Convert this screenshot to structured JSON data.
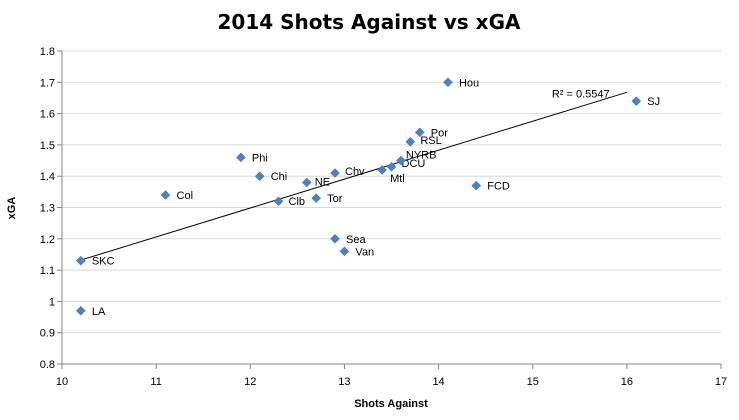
{
  "chart_data": {
    "type": "scatter",
    "title": "2014 Shots Against vs xGA",
    "xlabel": "Shots Against",
    "ylabel": "xGA",
    "xlim": [
      10,
      17
    ],
    "ylim": [
      0.8,
      1.8
    ],
    "xticks": [
      10,
      11,
      12,
      13,
      14,
      15,
      16,
      17
    ],
    "yticks": [
      0.8,
      0.9,
      1,
      1.1,
      1.2,
      1.3,
      1.4,
      1.5,
      1.6,
      1.7,
      1.8
    ],
    "xtick_labels": [
      "10",
      "11",
      "12",
      "13",
      "14",
      "15",
      "16",
      "17"
    ],
    "ytick_labels": [
      "0.8",
      "0.9",
      "1",
      "1.1",
      "1.2",
      "1.3",
      "1.4",
      "1.5",
      "1.6",
      "1.7",
      "1.8"
    ],
    "grid": "y-major",
    "marker_color": "#4F81BD",
    "trend_color": "#000000",
    "points": [
      {
        "label": "SKC",
        "x": 10.2,
        "y": 1.13
      },
      {
        "label": "LA",
        "x": 10.2,
        "y": 0.97
      },
      {
        "label": "Col",
        "x": 11.1,
        "y": 1.34
      },
      {
        "label": "Phi",
        "x": 11.9,
        "y": 1.46
      },
      {
        "label": "Chi",
        "x": 12.1,
        "y": 1.4
      },
      {
        "label": "Clb",
        "x": 12.3,
        "y": 1.32
      },
      {
        "label": "NE",
        "x": 12.6,
        "y": 1.38
      },
      {
        "label": "Tor",
        "x": 12.7,
        "y": 1.33
      },
      {
        "label": "Chv",
        "x": 12.9,
        "y": 1.41
      },
      {
        "label": "Sea",
        "x": 12.9,
        "y": 1.2
      },
      {
        "label": "Van",
        "x": 13.0,
        "y": 1.16
      },
      {
        "label": "Mtl",
        "x": 13.4,
        "y": 1.42
      },
      {
        "label": "DCU",
        "x": 13.5,
        "y": 1.43
      },
      {
        "label": "NYRB",
        "x": 13.6,
        "y": 1.45
      },
      {
        "label": "RSL",
        "x": 13.7,
        "y": 1.51
      },
      {
        "label": "Por",
        "x": 13.8,
        "y": 1.54
      },
      {
        "label": "Hou",
        "x": 14.1,
        "y": 1.7
      },
      {
        "label": "FCD",
        "x": 14.4,
        "y": 1.37
      },
      {
        "label": "SJ",
        "x": 16.1,
        "y": 1.64
      }
    ],
    "trendline": {
      "type": "linear",
      "x": [
        10.2,
        16.0
      ],
      "y": [
        1.132,
        1.668
      ],
      "r_squared_label": "R² = 0.5547"
    }
  }
}
